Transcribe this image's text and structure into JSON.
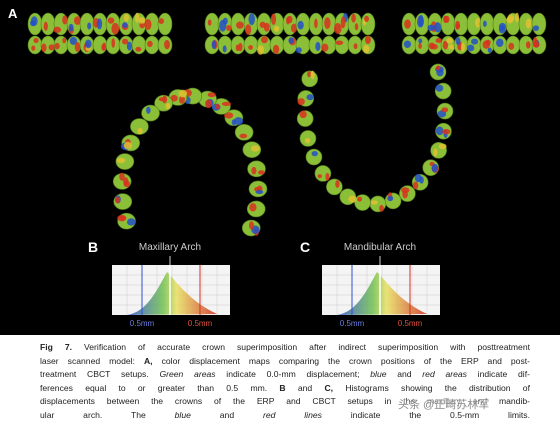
{
  "figure": {
    "panel_a_label": "A",
    "histograms": [
      {
        "label": "B",
        "title": "Maxillary Arch",
        "left_limit": "0.5mm",
        "right_limit": "0.5mm"
      },
      {
        "label": "C",
        "title": "Mandibular Arch",
        "left_limit": "0.5mm",
        "right_limit": "0.5mm"
      }
    ]
  },
  "caption": {
    "lines": [
      [
        {
          "text": "Fig 7.",
          "style": "bold"
        },
        {
          "text": " Verification of accurate crown superimposition after indirect superimposition with posttreatment",
          "style": "normal"
        }
      ],
      [
        {
          "text": "laser scanned model: ",
          "style": "normal"
        },
        {
          "text": "A,",
          "style": "bold"
        },
        {
          "text": " color displacement maps comparing the crown positions of the ERP and post-",
          "style": "normal"
        }
      ],
      [
        {
          "text": "treatment CBCT setups. ",
          "style": "normal"
        },
        {
          "text": "Green areas",
          "style": "italic"
        },
        {
          "text": " indicate 0.0-mm displacement; ",
          "style": "normal"
        },
        {
          "text": "blue",
          "style": "italic"
        },
        {
          "text": " and ",
          "style": "normal"
        },
        {
          "text": "red areas",
          "style": "italic"
        },
        {
          "text": " indicate dif-",
          "style": "normal"
        }
      ],
      [
        {
          "text": "ferences equal to or greater than 0.5 mm. ",
          "style": "normal"
        },
        {
          "text": "B",
          "style": "bold"
        },
        {
          "text": " and ",
          "style": "normal"
        },
        {
          "text": "C,",
          "style": "bold"
        },
        {
          "text": " Histograms showing the distribution of",
          "style": "normal"
        }
      ],
      [
        {
          "text": "displacements between the crowns of the ERP and CBCT setups in the maxillary and mandib-",
          "style": "normal"
        }
      ],
      [
        {
          "text": "ular arch. The ",
          "style": "normal"
        },
        {
          "text": "blue",
          "style": "italic"
        },
        {
          "text": " and ",
          "style": "normal"
        },
        {
          "text": "red lines",
          "style": "italic"
        },
        {
          "text": " indicate the 0.5-mm limits.",
          "style": "normal"
        }
      ]
    ]
  },
  "watermark": "头条 @正畸苏林军"
}
